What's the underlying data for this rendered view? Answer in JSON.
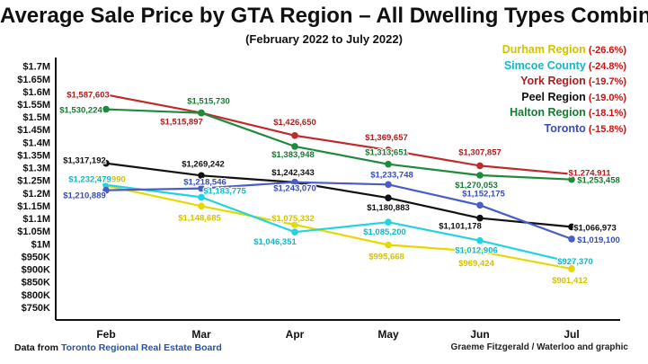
{
  "chart_data": {
    "type": "line",
    "title": "Average Sale Price by GTA Region – All Dwelling Types Combined",
    "subtitle": "(February 2022 to July 2022)",
    "categories": [
      "Feb",
      "Mar",
      "Apr",
      "May",
      "Jun",
      "Jul"
    ],
    "yticks": [
      750000,
      800000,
      850000,
      900000,
      950000,
      1000000,
      1050000,
      1100000,
      1150000,
      1200000,
      1250000,
      1300000,
      1350000,
      1400000,
      1450000,
      1500000,
      1550000,
      1600000,
      1650000,
      1700000
    ],
    "ytick_labels": [
      "$750K",
      "$800K",
      "$850K",
      "$900K",
      "$950K",
      "$1M",
      "$1.05M",
      "$1.1M",
      "$1.15M",
      "$1.2M",
      "$1.25M",
      "$1.3M",
      "$1.35M",
      "$1.4M",
      "$1.45M",
      "$1.5M",
      "$1.55M",
      "$1.6M",
      "$1.65M",
      "$1.7M"
    ],
    "ylim": [
      700000,
      1720000
    ],
    "grid": false,
    "legend_position": "top-right",
    "series": [
      {
        "name": "Durham Region",
        "change": "(-26.6%)",
        "color": "#e8d800",
        "label_color": "#d4c200",
        "values": [
          1228990,
          1148685,
          1075332,
          995668,
          969424,
          901412
        ],
        "labels": [
          "$1,228,990",
          "$1,148,685",
          "$1,075,332",
          "$995,668",
          "$969,424",
          "$901,412"
        ]
      },
      {
        "name": "Simcoe County",
        "change": "(-24.8%)",
        "color": "#22d4e0",
        "label_color": "#16b6c6",
        "values": [
          1232479,
          1183775,
          1046351,
          1085200,
          1012906,
          927370
        ],
        "labels": [
          "$1,232,479",
          "$1,183,775",
          "$1,046,351",
          "$1,085,200",
          "$1,012,906",
          "$927,370"
        ]
      },
      {
        "name": "York Region",
        "change": "(-19.7%)",
        "color": "#c02a2a",
        "label_color": "#b01e1e",
        "values": [
          1587603,
          1515897,
          1426650,
          1369657,
          1307857,
          1274911
        ],
        "labels": [
          "$1,587,603",
          "$1,515,897",
          "$1,426,650",
          "$1,369,657",
          "$1,307,857",
          "$1,274,911"
        ]
      },
      {
        "name": "Peel Region",
        "change": "(-19.0%)",
        "color": "#111111",
        "label_color": "#111111",
        "values": [
          1317192,
          1269242,
          1242343,
          1180883,
          1101178,
          1066973
        ],
        "labels": [
          "$1,317,192",
          "$1,269,242",
          "$1,242,343",
          "$1,180,883",
          "$1,101,178",
          "$1,066,973"
        ]
      },
      {
        "name": "Halton Region",
        "change": "(-18.1%)",
        "color": "#1e8a3c",
        "label_color": "#1a7a34",
        "values": [
          1530224,
          1515730,
          1383948,
          1313651,
          1270053,
          1253458
        ],
        "labels": [
          "$1,530,224",
          "$1,515,730",
          "$1,383,948",
          "$1,313,651",
          "$1,270,053",
          "$1,253,458"
        ]
      },
      {
        "name": "Toronto",
        "change": "(-15.8%)",
        "color": "#4a5cc8",
        "label_color": "#3a4cb8",
        "values": [
          1210889,
          1218546,
          1243070,
          1233748,
          1152175,
          1019100
        ],
        "labels": [
          "$1,210,889",
          "$1,218,546",
          "$1,243,070",
          "$1,233,748",
          "$1,152,175",
          "$1,019,100"
        ]
      }
    ]
  },
  "source": {
    "prefix": "Data from ",
    "org": "Toronto Regional Real Estate Board"
  },
  "credit": "Graeme Fitzgerald / Waterloo and graphic"
}
